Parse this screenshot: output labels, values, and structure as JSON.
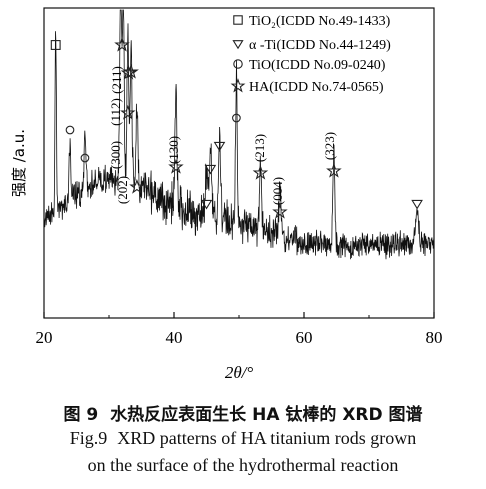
{
  "chart_data": {
    "type": "line",
    "xlabel": "2θ/°",
    "ylabel": "强度 /a.u.",
    "xlim": [
      20,
      80
    ],
    "xticks": [
      "20",
      "40",
      "60",
      "80"
    ],
    "yticks": [],
    "grid": false,
    "legend_position": "top-right",
    "legend": [
      {
        "marker": "square",
        "label": "TiO₂(ICDD No.49-1433)"
      },
      {
        "marker": "triangle-down",
        "label": "α -Ti(ICDD No.44-1249)"
      },
      {
        "marker": "circle",
        "label": "TiO(ICDD No.09-0240)"
      },
      {
        "marker": "star",
        "label": "HA(ICDD No.74-0565)"
      }
    ],
    "peaks": [
      {
        "x": 21.8,
        "marker": "square"
      },
      {
        "x": 24.0,
        "marker": "circle"
      },
      {
        "x": 26.3,
        "marker": "circle"
      },
      {
        "x": 32.0,
        "marker": "star"
      },
      {
        "x": 32.9,
        "marker": "star",
        "label": "(112)"
      },
      {
        "x": 33.4,
        "marker": "star",
        "label": "(211)"
      },
      {
        "x": 33.0,
        "marker": "star",
        "label": "(300)"
      },
      {
        "x": 34.3,
        "marker": "star",
        "label": "(202)"
      },
      {
        "x": 40.3,
        "marker": "star",
        "label": "(130)"
      },
      {
        "x": 45.0,
        "marker": "triangle-down"
      },
      {
        "x": 45.6,
        "marker": "triangle-down"
      },
      {
        "x": 47.0,
        "marker": "triangle-down"
      },
      {
        "x": 49.6,
        "marker": "circle"
      },
      {
        "x": 53.3,
        "marker": "star",
        "label": "(213)"
      },
      {
        "x": 56.3,
        "marker": "star",
        "label": "(004)"
      },
      {
        "x": 64.6,
        "marker": "star",
        "label": "(323)"
      },
      {
        "x": 77.4,
        "marker": "triangle-down"
      }
    ]
  },
  "caption": {
    "cn_label": "图 9",
    "cn_text": "水热反应表面生长 HA 钛棒的 XRD 图谱",
    "en_label": "Fig.9",
    "en_line1": "XRD patterns of HA titanium rods grown",
    "en_line2": "on the surface of the hydrothermal reaction"
  }
}
